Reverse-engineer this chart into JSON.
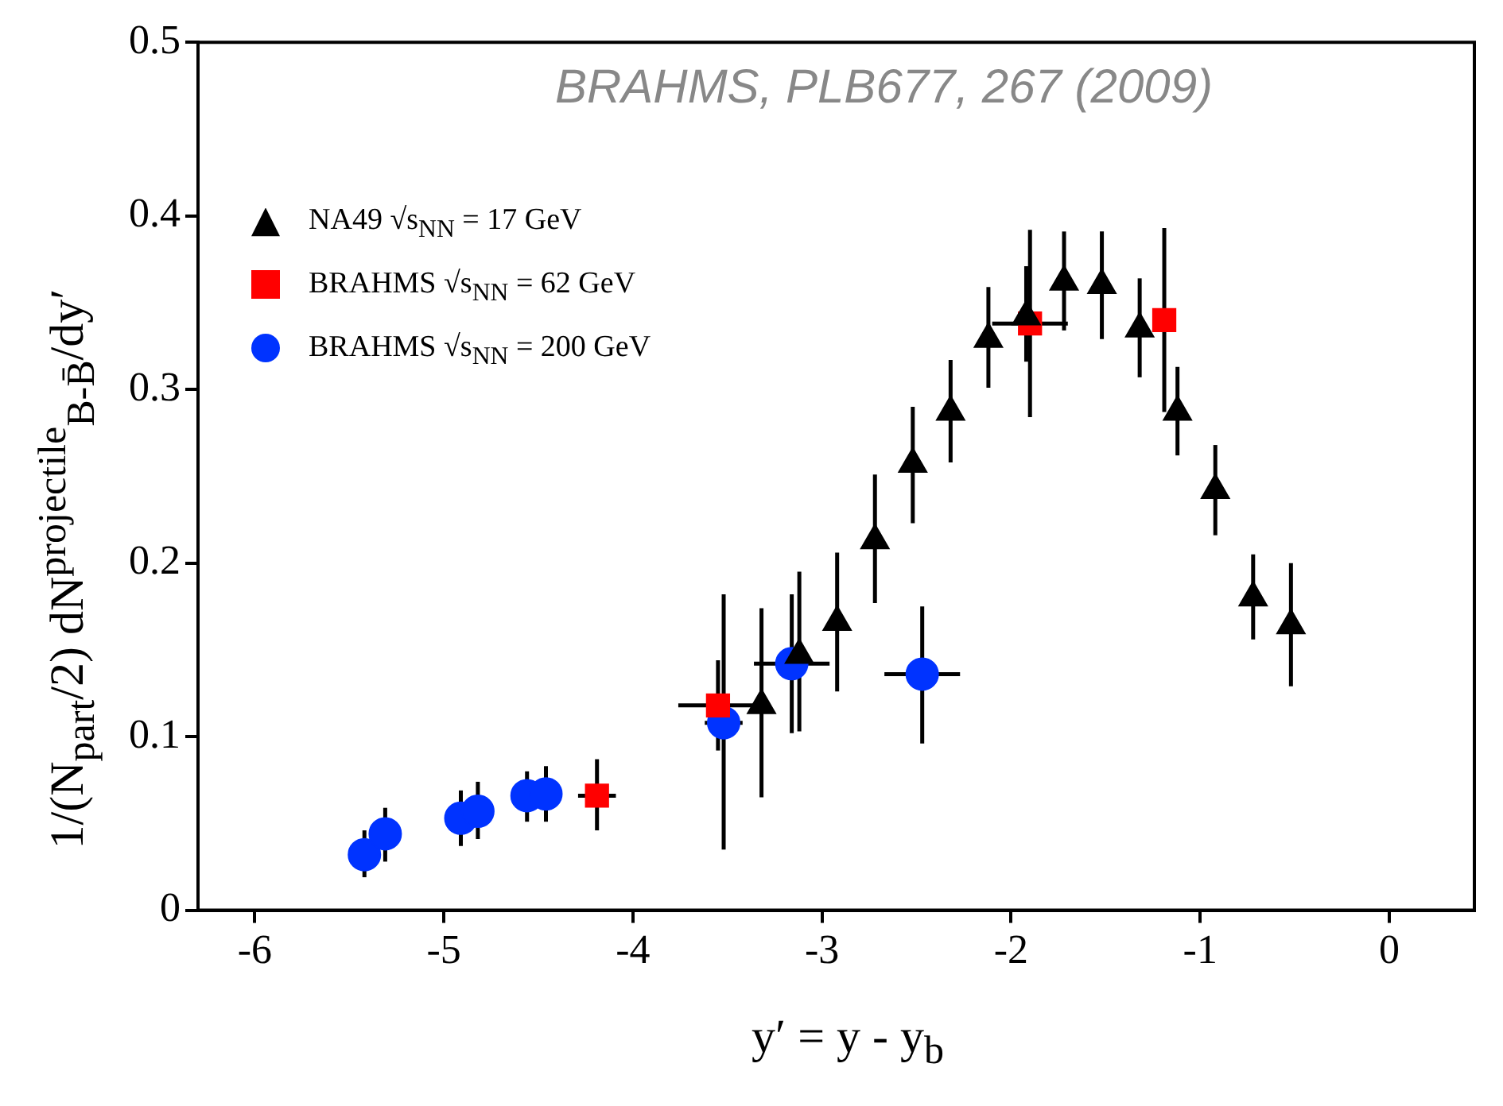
{
  "chart_data": {
    "type": "scatter",
    "xlabel": "y′ = y - y$_{b}$",
    "ylabel": "1/(N$_{part}$/2) dN$^{projectile}$$_{B-B̄}$/dy′",
    "annotations": [
      "BRAHMS, PLB677, 267 (2009)"
    ],
    "xlim": [
      -6.3,
      0.45
    ],
    "xticks": [
      -6,
      -5,
      -4,
      -3,
      -2,
      -1,
      0
    ],
    "ylim": [
      0,
      0.5
    ],
    "yticks": [
      0,
      0.1,
      0.2,
      0.3,
      0.4,
      0.5
    ],
    "grid": false,
    "legend": "top left",
    "series": [
      {
        "name": "NA49 √s$_{NN}$ = 17 GeV",
        "color": "#000000",
        "marker": "triangle",
        "x": [
          -3.32,
          -3.12,
          -2.92,
          -2.72,
          -2.52,
          -2.32,
          -2.12,
          -1.92,
          -1.72,
          -1.52,
          -1.32,
          -1.12,
          -0.92,
          -0.72,
          -0.52
        ],
        "values": [
          0.118,
          0.147,
          0.166,
          0.213,
          0.257,
          0.287,
          0.329,
          0.342,
          0.362,
          0.36,
          0.335,
          0.287,
          0.242,
          0.18,
          0.164
        ],
        "errors": [
          [
            0.065,
            0.174
          ],
          [
            0.103,
            0.195
          ],
          [
            0.126,
            0.206
          ],
          [
            0.177,
            0.251
          ],
          [
            0.223,
            0.29
          ],
          [
            0.258,
            0.317
          ],
          [
            0.301,
            0.359
          ],
          [
            0.316,
            0.371
          ],
          [
            0.334,
            0.391
          ],
          [
            0.329,
            0.391
          ],
          [
            0.307,
            0.364
          ],
          [
            0.262,
            0.313
          ],
          [
            0.216,
            0.268
          ],
          [
            0.156,
            0.205
          ],
          [
            0.129,
            0.2
          ]
        ]
      },
      {
        "name": "BRAHMS √s$_{NN}$ = 62 GeV",
        "color": "#ff0000",
        "marker": "square",
        "x": [
          -4.19,
          -3.55,
          -1.9,
          -1.19
        ],
        "values": [
          0.066,
          0.118,
          0.338,
          0.34
        ],
        "errors": [
          [
            0.046,
            0.087
          ],
          [
            0.092,
            0.144
          ],
          [
            0.284,
            0.392
          ],
          [
            0.287,
            0.393
          ]
        ],
        "xerrors": [
          0.1,
          0.21,
          0.2,
          null
        ]
      },
      {
        "name": "BRAHMS √s$_{NN}$ = 200 GeV",
        "color": "#0033ff",
        "marker": "circle",
        "x": [
          -5.42,
          -5.31,
          -4.91,
          -4.82,
          -4.56,
          -4.46,
          -3.52,
          -3.16,
          -2.47
        ],
        "values": [
          0.032,
          0.044,
          0.053,
          0.057,
          0.066,
          0.067,
          0.108,
          0.142,
          0.136
        ],
        "errors": [
          [
            0.019,
            0.046
          ],
          [
            0.028,
            0.059
          ],
          [
            0.037,
            0.069
          ],
          [
            0.041,
            0.074
          ],
          [
            0.051,
            0.08
          ],
          [
            0.051,
            0.083
          ],
          [
            0.035,
            0.182
          ],
          [
            0.102,
            0.182
          ],
          [
            0.096,
            0.175
          ]
        ],
        "xerrors": [
          null,
          null,
          null,
          null,
          null,
          null,
          0.1,
          0.2,
          0.2
        ]
      }
    ]
  }
}
